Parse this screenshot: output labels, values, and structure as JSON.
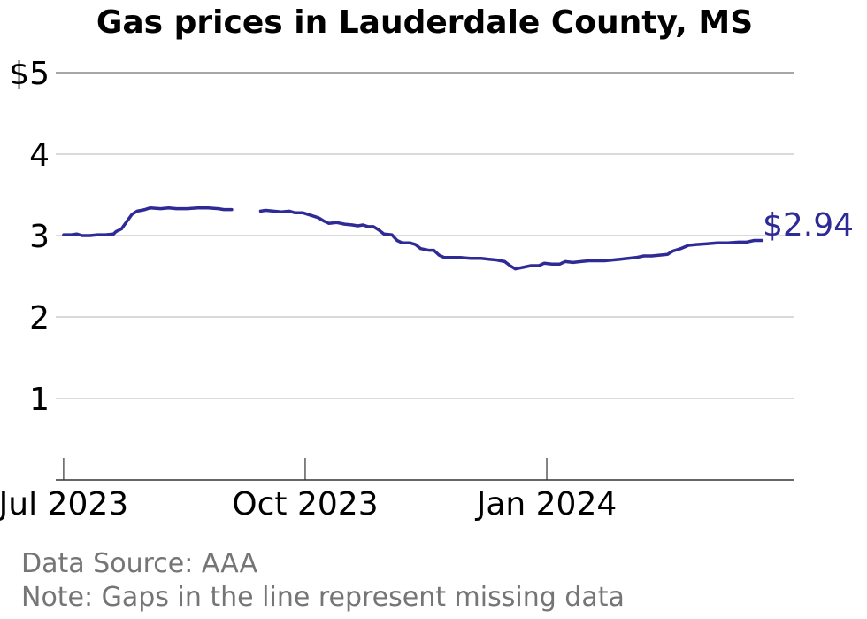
{
  "chart_data": {
    "type": "line",
    "title": "Gas prices in Lauderdale County, MS",
    "xlabel": "",
    "ylabel": "",
    "x_range": [
      "2023-06-28",
      "2024-04-04"
    ],
    "ylim": [
      0,
      5
    ],
    "y_ticks": [
      {
        "value": 1,
        "label": "1"
      },
      {
        "value": 2,
        "label": "2"
      },
      {
        "value": 3,
        "label": "3"
      },
      {
        "value": 4,
        "label": "4"
      },
      {
        "value": 5,
        "label": "$5"
      }
    ],
    "x_ticks": [
      {
        "date": "2023-07-01",
        "label": "Jul 2023"
      },
      {
        "date": "2023-10-01",
        "label": "Oct 2023"
      },
      {
        "date": "2024-01-01",
        "label": "Jan 2024"
      }
    ],
    "grid": true,
    "line_color": "#2e2a96",
    "end_label": "$2.94",
    "series": [
      {
        "segments": [
          [
            [
              "2023-07-01",
              3.01
            ],
            [
              "2023-07-04",
              3.01
            ],
            [
              "2023-07-06",
              3.02
            ],
            [
              "2023-07-08",
              3.0
            ],
            [
              "2023-07-11",
              3.0
            ],
            [
              "2023-07-14",
              3.01
            ],
            [
              "2023-07-17",
              3.01
            ],
            [
              "2023-07-20",
              3.02
            ],
            [
              "2023-07-21",
              3.05
            ],
            [
              "2023-07-23",
              3.08
            ],
            [
              "2023-07-25",
              3.17
            ],
            [
              "2023-07-27",
              3.26
            ],
            [
              "2023-07-29",
              3.3
            ],
            [
              "2023-08-01",
              3.32
            ],
            [
              "2023-08-03",
              3.34
            ],
            [
              "2023-08-07",
              3.33
            ],
            [
              "2023-08-10",
              3.34
            ],
            [
              "2023-08-13",
              3.33
            ],
            [
              "2023-08-17",
              3.33
            ],
            [
              "2023-08-21",
              3.34
            ],
            [
              "2023-08-25",
              3.34
            ],
            [
              "2023-08-29",
              3.33
            ],
            [
              "2023-08-31",
              3.32
            ],
            [
              "2023-09-03",
              3.32
            ]
          ],
          [
            [
              "2023-09-14",
              3.3
            ],
            [
              "2023-09-16",
              3.31
            ],
            [
              "2023-09-19",
              3.3
            ],
            [
              "2023-09-22",
              3.29
            ],
            [
              "2023-09-25",
              3.3
            ],
            [
              "2023-09-27",
              3.28
            ],
            [
              "2023-09-30",
              3.28
            ],
            [
              "2023-10-02",
              3.26
            ],
            [
              "2023-10-04",
              3.24
            ],
            [
              "2023-10-06",
              3.22
            ],
            [
              "2023-10-08",
              3.18
            ],
            [
              "2023-10-10",
              3.15
            ],
            [
              "2023-10-13",
              3.16
            ],
            [
              "2023-10-16",
              3.14
            ],
            [
              "2023-10-19",
              3.13
            ],
            [
              "2023-10-21",
              3.12
            ],
            [
              "2023-10-23",
              3.13
            ],
            [
              "2023-10-25",
              3.11
            ],
            [
              "2023-10-27",
              3.11
            ],
            [
              "2023-10-29",
              3.07
            ],
            [
              "2023-10-31",
              3.02
            ],
            [
              "2023-11-03",
              3.01
            ],
            [
              "2023-11-05",
              2.94
            ],
            [
              "2023-11-07",
              2.91
            ],
            [
              "2023-11-10",
              2.91
            ],
            [
              "2023-11-12",
              2.89
            ],
            [
              "2023-11-14",
              2.84
            ],
            [
              "2023-11-17",
              2.82
            ],
            [
              "2023-11-19",
              2.82
            ],
            [
              "2023-11-21",
              2.76
            ],
            [
              "2023-11-23",
              2.73
            ],
            [
              "2023-11-26",
              2.73
            ],
            [
              "2023-11-29",
              2.73
            ],
            [
              "2023-12-03",
              2.72
            ],
            [
              "2023-12-07",
              2.72
            ],
            [
              "2023-12-10",
              2.71
            ],
            [
              "2023-12-13",
              2.7
            ],
            [
              "2023-12-16",
              2.68
            ],
            [
              "2023-12-18",
              2.63
            ],
            [
              "2023-12-20",
              2.59
            ],
            [
              "2023-12-23",
              2.61
            ],
            [
              "2023-12-26",
              2.63
            ],
            [
              "2023-12-29",
              2.63
            ],
            [
              "2023-12-31",
              2.66
            ],
            [
              "2024-01-03",
              2.65
            ],
            [
              "2024-01-06",
              2.65
            ],
            [
              "2024-01-08",
              2.68
            ],
            [
              "2024-01-11",
              2.67
            ],
            [
              "2024-01-14",
              2.68
            ],
            [
              "2024-01-17",
              2.69
            ],
            [
              "2024-01-20",
              2.69
            ],
            [
              "2024-01-23",
              2.69
            ],
            [
              "2024-01-26",
              2.7
            ],
            [
              "2024-01-29",
              2.71
            ],
            [
              "2024-02-01",
              2.72
            ],
            [
              "2024-02-04",
              2.73
            ],
            [
              "2024-02-07",
              2.75
            ],
            [
              "2024-02-10",
              2.75
            ],
            [
              "2024-02-13",
              2.76
            ],
            [
              "2024-02-16",
              2.77
            ],
            [
              "2024-02-18",
              2.81
            ],
            [
              "2024-02-21",
              2.84
            ],
            [
              "2024-02-24",
              2.88
            ],
            [
              "2024-02-27",
              2.89
            ],
            [
              "2024-03-02",
              2.9
            ],
            [
              "2024-03-06",
              2.91
            ],
            [
              "2024-03-10",
              2.91
            ],
            [
              "2024-03-14",
              2.92
            ],
            [
              "2024-03-17",
              2.92
            ],
            [
              "2024-03-20",
              2.94
            ],
            [
              "2024-03-23",
              2.94
            ]
          ]
        ]
      }
    ]
  },
  "footer": {
    "source": "Data Source: AAA",
    "note": "Note: Gaps in the line represent missing data"
  }
}
